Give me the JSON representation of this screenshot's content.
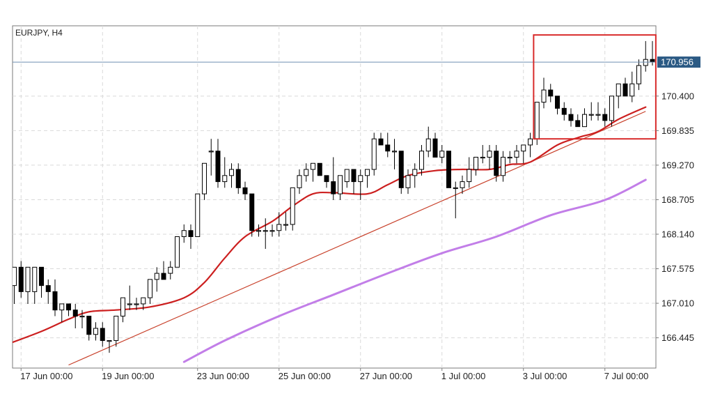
{
  "chart_data": {
    "type": "candlestick",
    "title": "EURJPY, H4",
    "symbol": "EURJPY",
    "timeframe": "H4",
    "current_price": 170.956,
    "current_price_label": "170.956",
    "ylim": [
      165.95,
      171.55
    ],
    "grid": true,
    "y_ticks": [
      "170.400",
      "169.835",
      "169.270",
      "168.705",
      "168.140",
      "167.575",
      "167.010",
      "166.445"
    ],
    "x_ticks": [
      "17 Jun 00:00",
      "19 Jun 00:00",
      "23 Jun 00:00",
      "25 Jun 00:00",
      "27 Jun 00:00",
      "1 Jul 00:00",
      "3 Jul 00:00",
      "7 Jul 00:00"
    ],
    "x_tick_bar_index": [
      1,
      13,
      27,
      39,
      51,
      63,
      75,
      87
    ],
    "candles": [
      [
        167.3,
        167.6,
        167.0,
        167.6
      ],
      [
        167.6,
        167.7,
        167.1,
        167.2
      ],
      [
        167.2,
        167.6,
        167.0,
        167.6
      ],
      [
        167.2,
        167.6,
        167.0,
        167.6
      ],
      [
        167.6,
        167.6,
        167.1,
        167.3
      ],
      [
        167.3,
        167.4,
        167.0,
        167.2
      ],
      [
        167.2,
        167.4,
        166.8,
        166.9
      ],
      [
        166.9,
        167.0,
        166.7,
        167.0
      ],
      [
        167.0,
        167.0,
        166.8,
        166.9
      ],
      [
        166.9,
        167.0,
        166.6,
        166.8
      ],
      [
        166.8,
        166.9,
        166.6,
        166.8
      ],
      [
        166.8,
        166.8,
        166.4,
        166.5
      ],
      [
        166.5,
        166.7,
        166.4,
        166.6
      ],
      [
        166.6,
        166.7,
        166.3,
        166.4
      ],
      [
        166.4,
        166.4,
        166.2,
        166.4
      ],
      [
        166.4,
        166.8,
        166.3,
        166.8
      ],
      [
        166.8,
        167.1,
        166.7,
        167.1
      ],
      [
        167.0,
        167.3,
        166.9,
        167.0
      ],
      [
        167.0,
        167.1,
        166.9,
        167.0
      ],
      [
        167.0,
        167.1,
        166.9,
        167.1
      ],
      [
        167.1,
        167.4,
        167.0,
        167.4
      ],
      [
        167.4,
        167.6,
        167.2,
        167.5
      ],
      [
        167.5,
        167.7,
        167.4,
        167.4
      ],
      [
        167.5,
        167.7,
        167.4,
        167.6
      ],
      [
        167.6,
        168.1,
        167.6,
        168.1
      ],
      [
        168.1,
        168.3,
        168.0,
        168.2
      ],
      [
        168.2,
        168.3,
        167.9,
        168.1
      ],
      [
        168.1,
        168.8,
        168.1,
        168.8
      ],
      [
        168.8,
        169.3,
        168.7,
        169.3
      ],
      [
        169.5,
        169.7,
        169.1,
        169.5
      ],
      [
        169.5,
        169.7,
        168.9,
        169.0
      ],
      [
        169.0,
        169.4,
        168.9,
        169.1
      ],
      [
        169.1,
        169.3,
        168.9,
        169.2
      ],
      [
        169.2,
        169.3,
        168.8,
        168.9
      ],
      [
        168.9,
        169.0,
        168.7,
        168.8
      ],
      [
        168.8,
        168.8,
        168.1,
        168.2
      ],
      [
        168.2,
        168.3,
        168.1,
        168.2
      ],
      [
        168.2,
        168.4,
        167.9,
        168.2
      ],
      [
        168.2,
        168.3,
        168.1,
        168.2
      ],
      [
        168.2,
        168.5,
        168.1,
        168.3
      ],
      [
        168.3,
        168.5,
        168.2,
        168.3
      ],
      [
        168.3,
        168.9,
        168.2,
        168.9
      ],
      [
        168.9,
        169.2,
        168.8,
        169.1
      ],
      [
        169.1,
        169.3,
        169.0,
        169.2
      ],
      [
        169.2,
        169.3,
        169.0,
        169.3
      ],
      [
        169.3,
        169.3,
        169.1,
        169.1
      ],
      [
        169.1,
        169.1,
        168.9,
        169.0
      ],
      [
        169.0,
        169.4,
        168.7,
        168.8
      ],
      [
        168.8,
        169.1,
        168.7,
        169.1
      ],
      [
        169.0,
        169.2,
        168.9,
        169.2
      ],
      [
        169.2,
        169.2,
        168.8,
        169.0
      ],
      [
        169.0,
        169.2,
        168.7,
        169.1
      ],
      [
        169.1,
        169.2,
        168.9,
        169.2
      ],
      [
        169.2,
        169.8,
        169.1,
        169.7
      ],
      [
        169.7,
        169.8,
        169.6,
        169.6
      ],
      [
        169.6,
        169.8,
        169.4,
        169.5
      ],
      [
        169.5,
        169.7,
        169.2,
        169.5
      ],
      [
        169.5,
        169.5,
        168.8,
        168.9
      ],
      [
        168.9,
        169.2,
        168.8,
        169.1
      ],
      [
        169.1,
        169.3,
        168.9,
        169.2
      ],
      [
        169.2,
        169.6,
        169.1,
        169.5
      ],
      [
        169.5,
        169.9,
        169.4,
        169.7
      ],
      [
        169.7,
        169.8,
        169.4,
        169.4
      ],
      [
        169.4,
        169.6,
        169.3,
        169.5
      ],
      [
        169.5,
        169.5,
        168.9,
        168.9
      ],
      [
        168.9,
        169.0,
        168.4,
        168.9
      ],
      [
        168.9,
        169.1,
        168.8,
        169.0
      ],
      [
        169.0,
        169.4,
        168.9,
        169.2
      ],
      [
        169.2,
        169.4,
        169.1,
        169.4
      ],
      [
        169.4,
        169.6,
        169.3,
        169.4
      ],
      [
        169.4,
        169.6,
        169.2,
        169.5
      ],
      [
        169.5,
        169.6,
        169.0,
        169.1
      ],
      [
        169.1,
        169.5,
        169.0,
        169.4
      ],
      [
        169.4,
        169.5,
        169.3,
        169.4
      ],
      [
        169.4,
        169.6,
        169.3,
        169.5
      ],
      [
        169.5,
        169.6,
        169.3,
        169.6
      ],
      [
        169.6,
        169.8,
        169.4,
        169.7
      ],
      [
        169.7,
        170.3,
        169.6,
        170.3
      ],
      [
        170.3,
        170.7,
        170.2,
        170.5
      ],
      [
        170.5,
        170.6,
        170.3,
        170.4
      ],
      [
        170.4,
        170.4,
        170.1,
        170.2
      ],
      [
        170.2,
        170.3,
        170.0,
        170.1
      ],
      [
        170.1,
        170.2,
        169.9,
        170.0
      ],
      [
        170.0,
        170.1,
        169.9,
        169.9
      ],
      [
        169.9,
        170.2,
        169.9,
        170.1
      ],
      [
        170.1,
        170.3,
        170.0,
        170.1
      ],
      [
        170.1,
        170.3,
        170.0,
        170.1
      ],
      [
        170.1,
        170.2,
        169.9,
        170.0
      ],
      [
        170.0,
        170.4,
        169.9,
        170.4
      ],
      [
        170.4,
        170.6,
        170.2,
        170.6
      ],
      [
        170.6,
        170.7,
        170.4,
        170.4
      ],
      [
        170.4,
        170.8,
        170.3,
        170.6
      ],
      [
        170.6,
        171.0,
        170.5,
        170.9
      ],
      [
        170.9,
        171.3,
        170.8,
        171.0
      ],
      [
        171.0,
        171.3,
        170.9,
        170.96
      ]
    ],
    "ma_fast": {
      "color": "#cc1f1f",
      "points": [
        [
          -2,
          166.3
        ],
        [
          4,
          166.55
        ],
        [
          8,
          166.75
        ],
        [
          11,
          166.87
        ],
        [
          15,
          166.9
        ],
        [
          20,
          166.95
        ],
        [
          25,
          167.1
        ],
        [
          28,
          167.35
        ],
        [
          31,
          167.75
        ],
        [
          34,
          168.1
        ],
        [
          38,
          168.35
        ],
        [
          41,
          168.6
        ],
        [
          44,
          168.8
        ],
        [
          47,
          168.82
        ],
        [
          52,
          168.8
        ],
        [
          55,
          168.95
        ],
        [
          58,
          169.1
        ],
        [
          62,
          169.18
        ],
        [
          66,
          169.2
        ],
        [
          70,
          169.2
        ],
        [
          73,
          169.28
        ],
        [
          76,
          169.32
        ],
        [
          80,
          169.6
        ],
        [
          83,
          169.72
        ],
        [
          86,
          169.82
        ],
        [
          89,
          170.02
        ],
        [
          93,
          170.22
        ]
      ]
    },
    "ma_slow": {
      "color": "#c27ee8",
      "points": [
        [
          25,
          166.05
        ],
        [
          31,
          166.4
        ],
        [
          39,
          166.8
        ],
        [
          47,
          167.15
        ],
        [
          55,
          167.5
        ],
        [
          63,
          167.83
        ],
        [
          71,
          168.1
        ],
        [
          79,
          168.45
        ],
        [
          87,
          168.7
        ],
        [
          93,
          169.03
        ]
      ]
    },
    "trendline": {
      "color": "#c8402a",
      "points": [
        [
          8,
          166.0
        ],
        [
          93,
          170.15
        ]
      ]
    },
    "highlight": {
      "color": "#d82a2a",
      "x_range": [
        76.5,
        94.5
      ],
      "y_range": [
        169.7,
        171.4
      ]
    }
  }
}
